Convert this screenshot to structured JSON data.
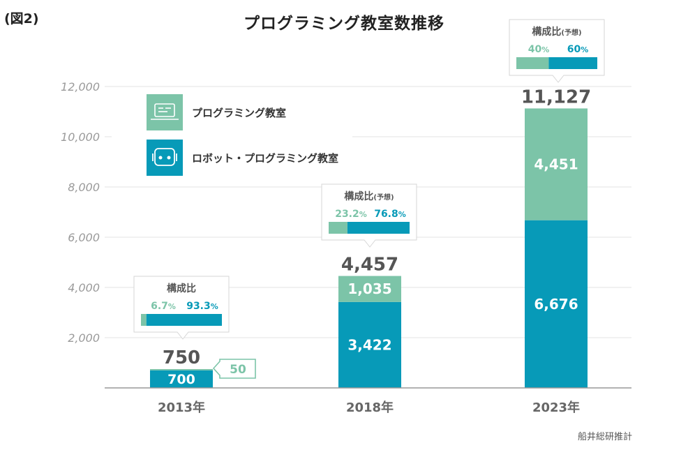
{
  "figure_tag": "(図2)",
  "source": "船井総研推計",
  "colors": {
    "programming": "#7cc4a8",
    "robot": "#079ab8",
    "total": "#555555",
    "axis": "#999999"
  },
  "legend": [
    {
      "label": "プログラミング教室",
      "icon": "laptop-icon",
      "color": "#7cc4a8"
    },
    {
      "label": "ロボット・プログラミング教室",
      "icon": "robot-icon",
      "color": "#079ab8"
    }
  ],
  "chart_data": {
    "type": "bar",
    "stacked": true,
    "title": "プログラミング教室数推移",
    "categories": [
      "2013年",
      "2018年",
      "2023年"
    ],
    "series": [
      {
        "name": "ロボット・プログラミング教室",
        "values": [
          700,
          3422,
          6676
        ]
      },
      {
        "name": "プログラミング教室",
        "values": [
          50,
          1035,
          4451
        ]
      }
    ],
    "totals": [
      "750",
      "4,457",
      "11,127"
    ],
    "segment_labels": {
      "robot": [
        "700",
        "3,422",
        "6,676"
      ],
      "programming": [
        "50",
        "1,035",
        "4,451"
      ]
    },
    "ylim": [
      0,
      12000
    ],
    "yticks": [
      "2,000",
      "4,000",
      "6,000",
      "8,000",
      "10,000",
      "12,000"
    ],
    "grid": true,
    "legend_position": "top-left",
    "composition": [
      {
        "title": "構成比",
        "suffix": "",
        "programming_pct": 6.7,
        "robot_pct": 93.3,
        "programming_label": "6.7",
        "robot_label": "93.3",
        "unit": "%"
      },
      {
        "title": "構成比",
        "suffix": "(予想)",
        "programming_pct": 23.2,
        "robot_pct": 76.8,
        "programming_label": "23.2",
        "robot_label": "76.8",
        "unit": "%"
      },
      {
        "title": "構成比",
        "suffix": "(予想)",
        "programming_pct": 40,
        "robot_pct": 60,
        "programming_label": "40",
        "robot_label": "60",
        "unit": "%"
      }
    ]
  }
}
